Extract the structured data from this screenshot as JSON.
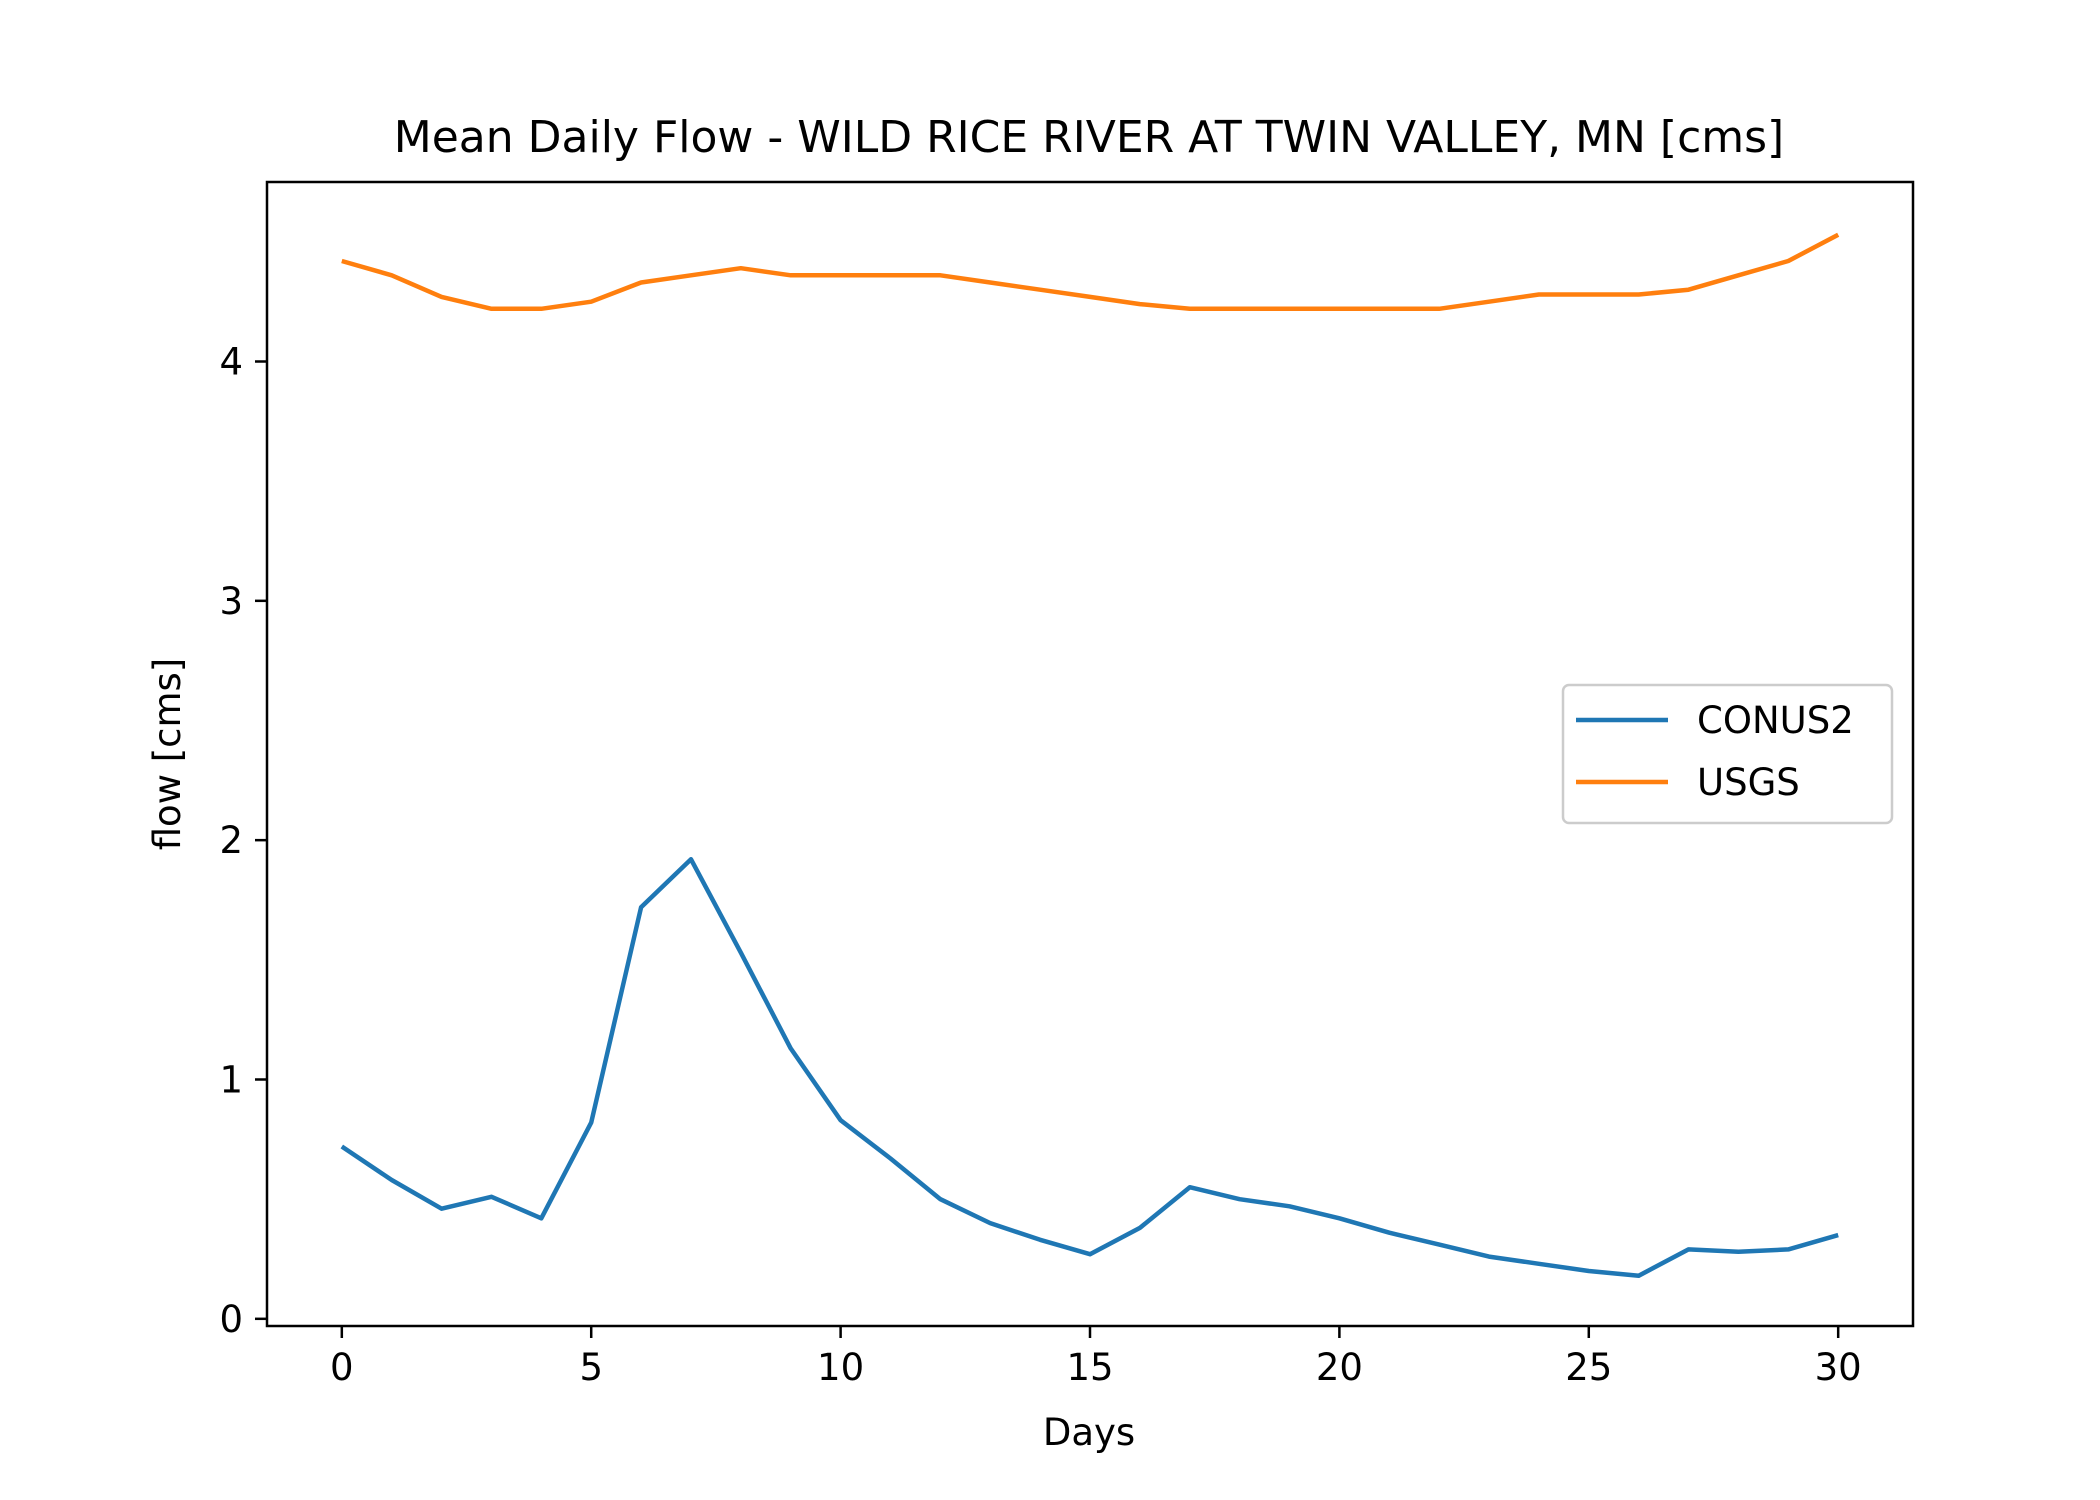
{
  "chart_data": {
    "type": "line",
    "title": "Mean Daily Flow - WILD RICE RIVER AT TWIN VALLEY, MN [cms]",
    "xlabel": "Days",
    "ylabel": "flow [cms]",
    "xlim": [
      -1.5,
      31.5
    ],
    "ylim": [
      -0.03,
      4.75
    ],
    "xticks": [
      0,
      5,
      10,
      15,
      20,
      25,
      30
    ],
    "yticks": [
      0,
      1,
      2,
      3,
      4
    ],
    "grid": false,
    "legend_position": "center-right",
    "x": [
      0,
      1,
      2,
      3,
      4,
      5,
      6,
      7,
      8,
      9,
      10,
      11,
      12,
      13,
      14,
      15,
      16,
      17,
      18,
      19,
      20,
      21,
      22,
      23,
      24,
      25,
      26,
      27,
      28,
      29,
      30
    ],
    "series": [
      {
        "name": "CONUS2",
        "color": "#1f77b4",
        "values": [
          0.72,
          0.58,
          0.46,
          0.51,
          0.42,
          0.82,
          1.72,
          1.92,
          1.53,
          1.13,
          0.83,
          0.67,
          0.5,
          0.4,
          0.33,
          0.27,
          0.38,
          0.55,
          0.5,
          0.47,
          0.42,
          0.36,
          0.31,
          0.26,
          0.23,
          0.2,
          0.18,
          0.29,
          0.28,
          0.29,
          0.35
        ]
      },
      {
        "name": "USGS",
        "color": "#ff7f0e",
        "values": [
          4.42,
          4.36,
          4.27,
          4.22,
          4.22,
          4.25,
          4.33,
          4.36,
          4.39,
          4.36,
          4.36,
          4.36,
          4.36,
          4.33,
          4.3,
          4.27,
          4.24,
          4.22,
          4.22,
          4.22,
          4.22,
          4.22,
          4.22,
          4.25,
          4.28,
          4.28,
          4.28,
          4.3,
          4.36,
          4.42,
          4.53
        ]
      }
    ]
  }
}
